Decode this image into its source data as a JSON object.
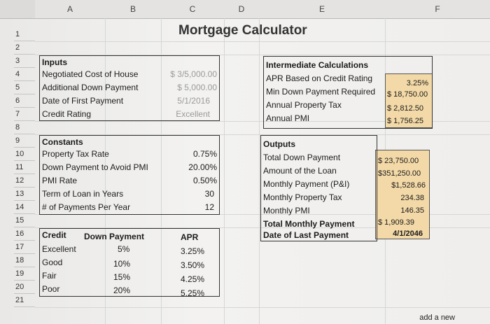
{
  "columns": [
    "A",
    "B",
    "C",
    "D",
    "E",
    "F"
  ],
  "rows": [
    "1",
    "2",
    "3",
    "4",
    "5",
    "6",
    "7",
    "8",
    "9",
    "10",
    "11",
    "12",
    "13",
    "14",
    "15",
    "16",
    "17",
    "18",
    "19",
    "20",
    "21"
  ],
  "title": "Mortgage Calculator",
  "inputs": {
    "header": "Inputs",
    "items": [
      {
        "label": "Negotiated Cost of House",
        "value": "$ 3/5,000.00"
      },
      {
        "label": "Additional Down Payment",
        "value": "$   5,000.00"
      },
      {
        "label": "Date of First Payment",
        "value": "5/1/2016"
      },
      {
        "label": "Credit Rating",
        "value": "Excellent"
      }
    ]
  },
  "constants": {
    "header": "Constants",
    "items": [
      {
        "label": "Property Tax Rate",
        "value": "0.75%"
      },
      {
        "label": "Down Payment to Avoid PMI",
        "value": "20.00%"
      },
      {
        "label": "PMI Rate",
        "value": "0.50%"
      },
      {
        "label": "Term of Loan in Years",
        "value": "30"
      },
      {
        "label": "# of Payments Per Year",
        "value": "12"
      }
    ]
  },
  "table": {
    "headers": [
      "Credit",
      "Down Payment",
      "APR"
    ],
    "rows": [
      [
        "Excellent",
        "5%",
        "3.25%"
      ],
      [
        "Good",
        "10%",
        "3.50%"
      ],
      [
        "Fair",
        "15%",
        "4.25%"
      ],
      [
        "Poor",
        "20%",
        "5.25%"
      ]
    ]
  },
  "intermediate": {
    "header": "Intermediate Calculations",
    "items": [
      {
        "label": "APR Based on Credit Rating",
        "value": "3.25%"
      },
      {
        "label": "Min Down Payment Required",
        "value": "$ 18,750.00"
      },
      {
        "label": "Annual Property Tax",
        "value": "$   2,812.50"
      },
      {
        "label": "Annual PMI",
        "value": "$   1,756.25"
      }
    ]
  },
  "outputs": {
    "header": "Outputs",
    "items": [
      {
        "label": "Total Down Payment",
        "value": "$ 23,750.00"
      },
      {
        "label": "Amount of the Loan",
        "value": "$351,250.00"
      },
      {
        "label": "Monthly Payment (P&I)",
        "value": "$1,528.66"
      },
      {
        "label": "Monthly Property Tax",
        "value": "234.38"
      },
      {
        "label": "Monthly PMI",
        "value": "146.35"
      },
      {
        "label": "Total Monthly Payment",
        "value": "$ 1,909.39"
      },
      {
        "label": "Date of Last Payment",
        "value": "4/1/2046"
      }
    ]
  },
  "footer_note": "add a new"
}
